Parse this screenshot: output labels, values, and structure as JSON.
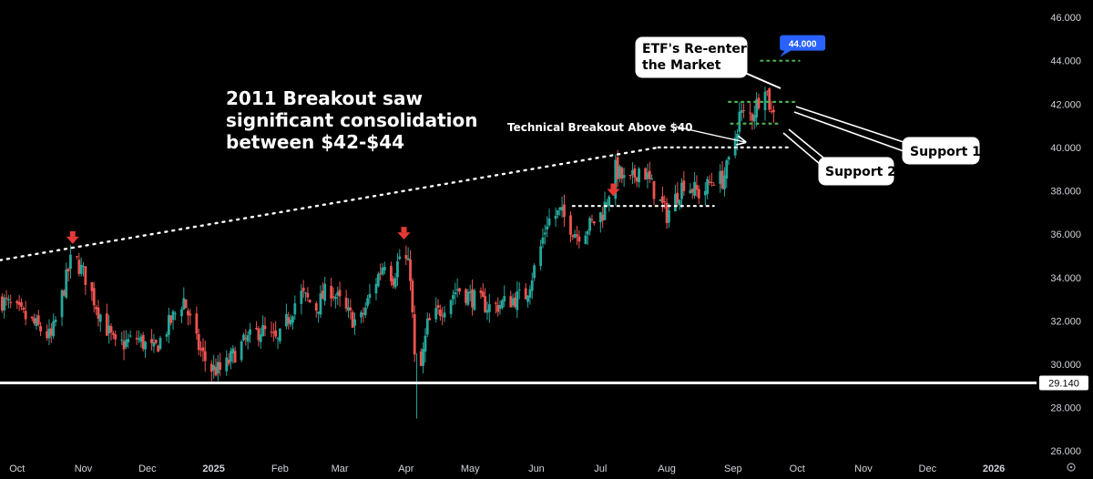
{
  "chart_data": {
    "type": "candlestick",
    "price_axis": {
      "ticks": [
        26,
        28,
        30,
        32,
        34,
        36,
        38,
        40,
        42,
        44,
        46
      ],
      "tick_labels": [
        "26.000",
        "28.000",
        "30.000",
        "32.000",
        "34.000",
        "36.000",
        "38.000",
        "40.000",
        "42.000",
        "44.000",
        "46.000"
      ],
      "range": [
        25.8,
        46.8
      ]
    },
    "time_axis": {
      "labels": [
        {
          "text": "Oct",
          "day": 0,
          "bold": false
        },
        {
          "text": "Nov",
          "day": 31,
          "bold": false
        },
        {
          "text": "Dec",
          "day": 61,
          "bold": false
        },
        {
          "text": "2025",
          "day": 92,
          "bold": true
        },
        {
          "text": "Feb",
          "day": 123,
          "bold": false
        },
        {
          "text": "Mar",
          "day": 151,
          "bold": false
        },
        {
          "text": "Apr",
          "day": 182,
          "bold": false
        },
        {
          "text": "May",
          "day": 212,
          "bold": false
        },
        {
          "text": "Jun",
          "day": 243,
          "bold": false
        },
        {
          "text": "Jul",
          "day": 273,
          "bold": false
        },
        {
          "text": "Aug",
          "day": 304,
          "bold": false
        },
        {
          "text": "Sep",
          "day": 335,
          "bold": false
        },
        {
          "text": "Oct",
          "day": 365,
          "bold": false
        },
        {
          "text": "Nov",
          "day": 396,
          "bold": false
        },
        {
          "text": "Dec",
          "day": 426,
          "bold": false
        },
        {
          "text": "2026",
          "day": 457,
          "bold": true
        }
      ],
      "range_days": [
        -8,
        477
      ]
    },
    "price_path": [
      [
        -8,
        33.0
      ],
      [
        6,
        32.0
      ],
      [
        16,
        31.2
      ],
      [
        26,
        35.1
      ],
      [
        32,
        34.0
      ],
      [
        38,
        32.5
      ],
      [
        46,
        30.8
      ],
      [
        56,
        31.2
      ],
      [
        64,
        30.6
      ],
      [
        72,
        32.0
      ],
      [
        78,
        33.0
      ],
      [
        84,
        31.0
      ],
      [
        90,
        29.8
      ],
      [
        96,
        29.7
      ],
      [
        104,
        30.8
      ],
      [
        114,
        31.6
      ],
      [
        122,
        31.0
      ],
      [
        132,
        33.3
      ],
      [
        140,
        32.6
      ],
      [
        146,
        33.6
      ],
      [
        154,
        32.4
      ],
      [
        160,
        31.8
      ],
      [
        166,
        33.4
      ],
      [
        172,
        34.8
      ],
      [
        176,
        34.0
      ],
      [
        180,
        35.3
      ],
      [
        184,
        34.2
      ],
      [
        186,
        30.2
      ],
      [
        188,
        29.2
      ],
      [
        192,
        31.8
      ],
      [
        198,
        32.5
      ],
      [
        206,
        33.5
      ],
      [
        214,
        33.0
      ],
      [
        222,
        32.6
      ],
      [
        232,
        33.0
      ],
      [
        238,
        33.2
      ],
      [
        244,
        35.0
      ],
      [
        248,
        36.6
      ],
      [
        254,
        37.0
      ],
      [
        262,
        36.0
      ],
      [
        268,
        36.4
      ],
      [
        274,
        37.0
      ],
      [
        280,
        39.0
      ],
      [
        286,
        38.2
      ],
      [
        292,
        39.2
      ],
      [
        298,
        38.0
      ],
      [
        304,
        36.9
      ],
      [
        312,
        38.4
      ],
      [
        320,
        37.8
      ],
      [
        326,
        38.6
      ],
      [
        330,
        38.5
      ],
      [
        334,
        39.5
      ],
      [
        338,
        41.5
      ],
      [
        344,
        41.5
      ],
      [
        350,
        43.0
      ],
      [
        353,
        41.5
      ],
      [
        356,
        42.6
      ]
    ],
    "candle_seed": 7,
    "horizontal_levels": [
      {
        "price": 29.14,
        "label": "29.140",
        "style": "solid",
        "color": "#ffffff"
      }
    ],
    "dotted_levels": [
      {
        "x1": 260,
        "x2": 326,
        "price": 37.3,
        "color": "#ffffff"
      },
      {
        "x1": 300,
        "x2": 362,
        "price": 40.0,
        "color": "#ffffff"
      },
      {
        "x1": 333,
        "x2": 364,
        "price": 42.1,
        "color": "#4caf50"
      },
      {
        "x1": 334,
        "x2": 357,
        "price": 41.1,
        "color": "#4caf50"
      },
      {
        "x1": 348,
        "x2": 366,
        "price": 44.0,
        "color": "#4caf50"
      }
    ],
    "trendline": {
      "x1": -8,
      "y1": 34.8,
      "x2": 300,
      "y2": 40.0,
      "color": "#ffffff"
    },
    "markers": [
      {
        "day": 26,
        "price": 35.8
      },
      {
        "day": 181,
        "price": 36.0
      },
      {
        "day": 279,
        "price": 38.0
      }
    ],
    "price_badge": "44.000",
    "annotations": {
      "consolidation": [
        "2011 Breakout saw",
        "significant consolidation",
        "between $42-$44"
      ],
      "technical_breakout": "Technical Breakout Above $40",
      "etf_box": [
        "ETF's Re-enter",
        "the Market"
      ],
      "support1": "Support 1",
      "support2": "Support 2"
    },
    "colors": {
      "up": "#26a69a",
      "down": "#ef5350",
      "marker": "#e53935",
      "badge": "#2962ff",
      "grid": "#000000"
    }
  }
}
